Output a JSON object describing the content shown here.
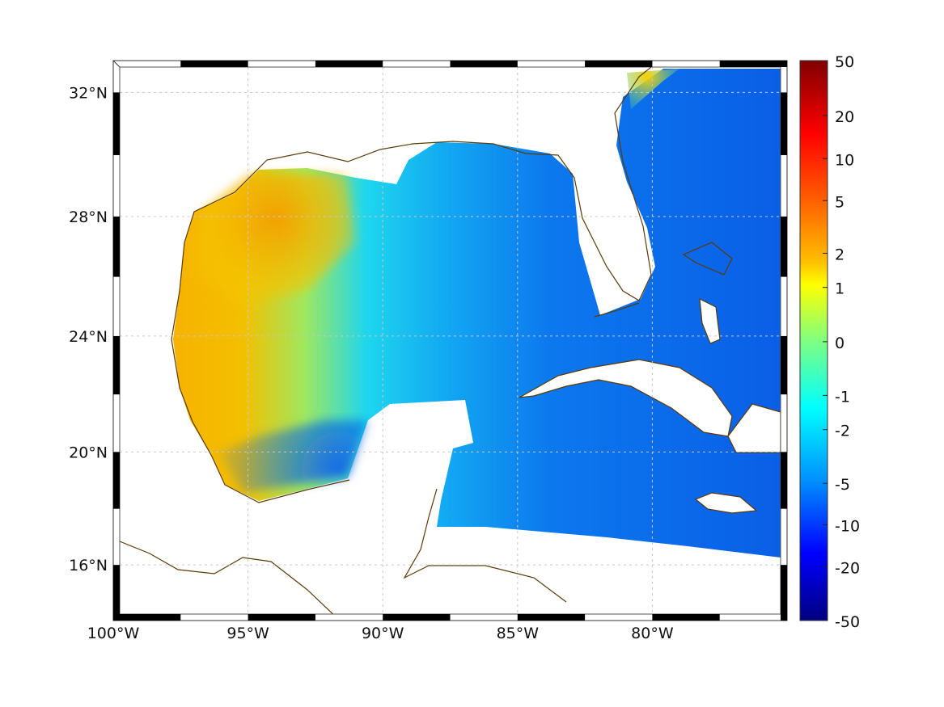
{
  "map": {
    "region": "Gulf of Mexico and Caribbean",
    "lon_range": [
      -100,
      -75
    ],
    "lat_range": [
      14,
      33
    ],
    "x_ticks": [
      {
        "lon": -100,
        "label": "100°W"
      },
      {
        "lon": -95,
        "label": "95°W"
      },
      {
        "lon": -90,
        "label": "90°W"
      },
      {
        "lon": -85,
        "label": "85°W"
      },
      {
        "lon": -80,
        "label": "80°W"
      }
    ],
    "y_ticks": [
      {
        "lat": 32,
        "label": "32°N"
      },
      {
        "lat": 28,
        "label": "28°N"
      },
      {
        "lat": 24,
        "label": "24°N"
      },
      {
        "lat": 20,
        "label": "20°N"
      },
      {
        "lat": 16,
        "label": "16°N"
      }
    ],
    "coast_color": "#5a3a08",
    "grid": true
  },
  "colorbar": {
    "ticks": [
      "50",
      "20",
      "10",
      "5",
      "2",
      "1",
      "0",
      "-1",
      "-2",
      "-5",
      "-10",
      "-20",
      "-50"
    ],
    "colormap": "jet"
  }
}
